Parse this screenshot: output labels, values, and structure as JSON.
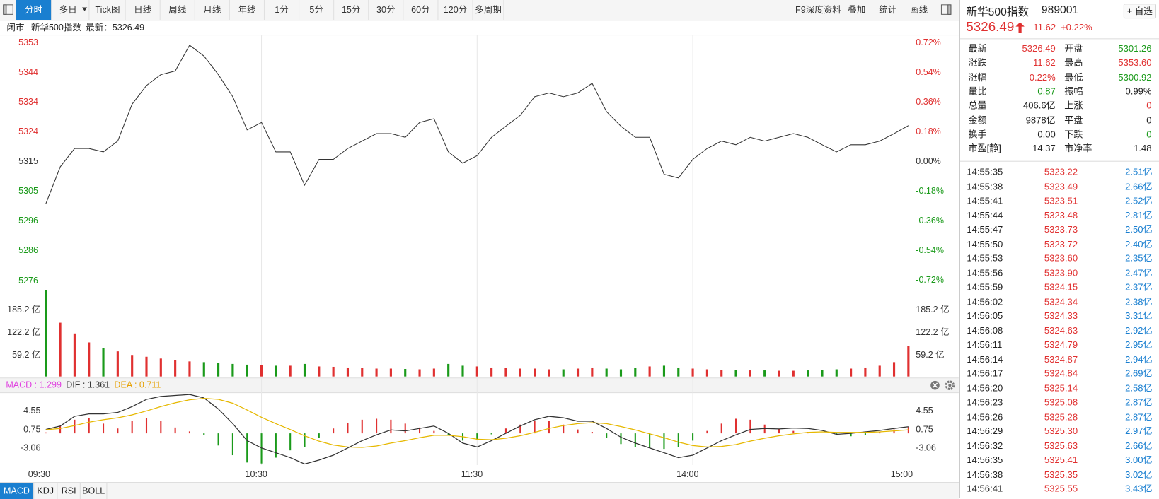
{
  "toolbar": {
    "tabs": [
      "分时",
      "多日",
      "Tick图",
      "日线",
      "周线",
      "月线",
      "年线",
      "1分",
      "5分",
      "15分",
      "30分",
      "60分",
      "120分",
      "多周期"
    ],
    "tools": [
      "F9深度资料",
      "叠加",
      "统计",
      "画线"
    ]
  },
  "status": {
    "state": "闭市",
    "name": "新华500指数",
    "latest": "最新：5326.49"
  },
  "quote": {
    "name": "新华500指数",
    "code": "989001",
    "watch": "+ 自选",
    "price": "5326.49",
    "change": "11.62",
    "change_pct": "+0.22%",
    "color": "#e03030"
  },
  "stats": [
    [
      {
        "label": "最新",
        "value": "5326.49",
        "color": "#e03030"
      },
      {
        "label": "开盘",
        "value": "5301.26",
        "color": "#1a9a1a"
      }
    ],
    [
      {
        "label": "涨跌",
        "value": "11.62",
        "color": "#e03030"
      },
      {
        "label": "最高",
        "value": "5353.60",
        "color": "#e03030"
      }
    ],
    [
      {
        "label": "涨幅",
        "value": "0.22%",
        "color": "#e03030"
      },
      {
        "label": "最低",
        "value": "5300.92",
        "color": "#1a9a1a"
      }
    ],
    [
      {
        "label": "量比",
        "value": "0.87",
        "color": "#1a9a1a"
      },
      {
        "label": "振幅",
        "value": "0.99%",
        "color": "#222222"
      }
    ],
    [
      {
        "label": "总量",
        "value": "406.6亿",
        "color": "#222222"
      },
      {
        "label": "上涨",
        "value": "0",
        "color": "#e03030"
      }
    ],
    [
      {
        "label": "金额",
        "value": "9878亿",
        "color": "#222222"
      },
      {
        "label": "平盘",
        "value": "0",
        "color": "#222222"
      }
    ],
    [
      {
        "label": "换手",
        "value": "0.00",
        "color": "#222222"
      },
      {
        "label": "下跌",
        "value": "0",
        "color": "#1a9a1a"
      }
    ],
    [
      {
        "label": "市盈[静]",
        "value": "14.37",
        "color": "#222222"
      },
      {
        "label": "市净率",
        "value": "1.48",
        "color": "#222222"
      }
    ]
  ],
  "trades": {
    "price_color": "#e03030",
    "amount_color": "#1a7fd0",
    "rows": [
      [
        "14:55:35",
        "5323.22",
        "2.51亿"
      ],
      [
        "14:55:38",
        "5323.49",
        "2.66亿"
      ],
      [
        "14:55:41",
        "5323.51",
        "2.52亿"
      ],
      [
        "14:55:44",
        "5323.48",
        "2.81亿"
      ],
      [
        "14:55:47",
        "5323.73",
        "2.50亿"
      ],
      [
        "14:55:50",
        "5323.72",
        "2.40亿"
      ],
      [
        "14:55:53",
        "5323.60",
        "2.35亿"
      ],
      [
        "14:55:56",
        "5323.90",
        "2.47亿"
      ],
      [
        "14:55:59",
        "5324.15",
        "2.37亿"
      ],
      [
        "14:56:02",
        "5324.34",
        "2.38亿"
      ],
      [
        "14:56:05",
        "5324.33",
        "3.31亿"
      ],
      [
        "14:56:08",
        "5324.63",
        "2.92亿"
      ],
      [
        "14:56:11",
        "5324.79",
        "2.95亿"
      ],
      [
        "14:56:14",
        "5324.87",
        "2.94亿"
      ],
      [
        "14:56:17",
        "5324.84",
        "2.69亿"
      ],
      [
        "14:56:20",
        "5325.14",
        "2.58亿"
      ],
      [
        "14:56:23",
        "5325.08",
        "2.87亿"
      ],
      [
        "14:56:26",
        "5325.28",
        "2.87亿"
      ],
      [
        "14:56:29",
        "5325.30",
        "2.97亿"
      ],
      [
        "14:56:32",
        "5325.63",
        "2.66亿"
      ],
      [
        "14:56:35",
        "5325.41",
        "3.00亿"
      ],
      [
        "14:56:38",
        "5325.35",
        "3.02亿"
      ],
      [
        "14:56:41",
        "5325.55",
        "3.43亿"
      ]
    ]
  },
  "indicator_tabs": [
    "MACD",
    "KDJ",
    "RSI",
    "BOLL"
  ],
  "chart_data": [
    {
      "type": "line",
      "color": "#333333",
      "positive_color": "#e03030",
      "negative_color": "#1a9a1a",
      "neutral_color": "#333333",
      "ylim": [
        5271.82,
        5355.53
      ],
      "yticks": [
        {
          "value": 5353.14,
          "label": "5353"
        },
        {
          "value": 5343.57,
          "label": "5344"
        },
        {
          "value": 5334.0,
          "label": "5334"
        },
        {
          "value": 5324.44,
          "label": "5324"
        },
        {
          "value": 5314.87,
          "label": "5315"
        },
        {
          "value": 5305.3,
          "label": "5305"
        },
        {
          "value": 5295.74,
          "label": "5296"
        },
        {
          "value": 5286.17,
          "label": "5286"
        },
        {
          "value": 5276.4,
          "label": "5276"
        }
      ],
      "y2lim": [
        -0.81,
        0.765
      ],
      "y2ticks": [
        {
          "value": 0.72,
          "label": "0.72%"
        },
        {
          "value": 0.54,
          "label": "0.54%"
        },
        {
          "value": 0.36,
          "label": "0.36%"
        },
        {
          "value": 0.18,
          "label": "0.18%"
        },
        {
          "value": 0,
          "label": "0.00%"
        },
        {
          "value": -0.18,
          "label": "-0.18%"
        },
        {
          "value": -0.36,
          "label": "-0.36%"
        },
        {
          "value": -0.54,
          "label": "-0.54%"
        },
        {
          "value": -0.72,
          "label": "-0.72%"
        }
      ],
      "values": [
        5301.3,
        5313.2,
        5319.1,
        5319.1,
        5318.0,
        5321.5,
        5333.4,
        5339.4,
        5342.9,
        5344.1,
        5352.4,
        5348.9,
        5342.9,
        5335.8,
        5325.1,
        5327.5,
        5318.0,
        5318.0,
        5307.3,
        5315.6,
        5315.6,
        5319.1,
        5321.5,
        5323.9,
        5323.9,
        5322.7,
        5327.5,
        5328.7,
        5318.0,
        5314.4,
        5316.8,
        5322.7,
        5326.3,
        5329.8,
        5335.8,
        5337.0,
        5335.8,
        5337.0,
        5340.1,
        5331.0,
        5326.3,
        5322.7,
        5322.7,
        5310.8,
        5309.6,
        5315.6,
        5319.1,
        5321.5,
        5320.3,
        5322.7,
        5321.5,
        5322.7,
        5323.9,
        5322.7,
        5320.3,
        5318.0,
        5320.3,
        5320.3,
        5321.5,
        5323.9,
        5326.5
      ]
    },
    {
      "type": "bar",
      "up_color": "#e03030",
      "down_color": "#1a9a1a",
      "label_color": "#333333",
      "ylim": [
        0,
        245
      ],
      "yticks": [
        {
          "value": 185.2,
          "label": "185.2 亿"
        },
        {
          "value": 122.2,
          "label": "122.2 亿"
        },
        {
          "value": 59.2,
          "label": "59.2 亿"
        }
      ],
      "values": [
        240,
        150,
        120,
        95,
        80,
        70,
        60,
        55,
        50,
        45,
        42,
        40,
        38,
        35,
        33,
        32,
        30,
        30,
        35,
        28,
        27,
        25,
        24,
        22,
        22,
        21,
        20,
        22,
        35,
        30,
        28,
        25,
        24,
        22,
        22,
        20,
        20,
        22,
        25,
        22,
        20,
        24,
        28,
        30,
        25,
        22,
        20,
        18,
        18,
        17,
        17,
        16,
        16,
        17,
        18,
        20,
        22,
        25,
        30,
        40,
        85
      ]
    },
    {
      "type": "macd",
      "up_color": "#e03030",
      "down_color": "#1a9a1a",
      "label_color": "#333333",
      "header": [
        {
          "text": "MACD : 1.299",
          "color": "#e040e0"
        },
        {
          "text": "DIF : 1.361",
          "color": "#333333"
        },
        {
          "text": "DEA : 0.711",
          "color": "#e6a000"
        }
      ],
      "ylim": [
        -6.53,
        8.36
      ],
      "yticks": [
        4.55,
        0.75,
        -3.06
      ],
      "xticks": [
        "09:30",
        "10:30",
        "11:30",
        "14:00",
        "15:00"
      ],
      "series": [
        {
          "kind": "bar",
          "values": [
            0.2,
            1.5,
            2.8,
            3.2,
            2.0,
            1.0,
            2.5,
            3.2,
            2.6,
            1.2,
            0.4,
            -0.3,
            -2.5,
            -4.5,
            -6.0,
            -6.2,
            -5.0,
            -3.5,
            -2.8,
            -1.0,
            1.0,
            2.2,
            2.8,
            3.0,
            2.8,
            2.0,
            1.2,
            0.5,
            -0.3,
            -1.5,
            -1.3,
            -0.2,
            1.0,
            1.8,
            2.5,
            2.6,
            1.8,
            0.8,
            0.3,
            -1.0,
            -2.2,
            -2.8,
            -3.0,
            -3.2,
            -2.8,
            -1.5,
            0.5,
            2.0,
            3.0,
            2.8,
            1.8,
            0.9,
            0.5,
            0.3,
            0.0,
            -0.4,
            -0.6,
            -0.3,
            0.3,
            0.8,
            1.299
          ]
        },
        {
          "kind": "line",
          "color": "#333333",
          "values": [
            0.8,
            1.5,
            3.5,
            4.0,
            4.0,
            4.3,
            5.5,
            7.0,
            7.6,
            7.8,
            8.0,
            7.3,
            5.0,
            2.0,
            -1.5,
            -3.0,
            -4.0,
            -5.0,
            -6.3,
            -5.5,
            -4.5,
            -3.0,
            -1.5,
            -0.3,
            0.7,
            0.5,
            1.0,
            1.5,
            0.0,
            -2.0,
            -2.8,
            -1.5,
            0.0,
            1.5,
            2.8,
            3.5,
            3.2,
            2.5,
            2.5,
            1.0,
            -0.8,
            -2.0,
            -3.0,
            -4.0,
            -5.0,
            -4.5,
            -3.0,
            -1.5,
            -0.3,
            0.8,
            1.0,
            0.9,
            1.1,
            1.0,
            0.6,
            -0.2,
            0.0,
            0.3,
            0.6,
            1.0,
            1.361
          ]
        },
        {
          "kind": "line",
          "color": "#e6b800",
          "values": [
            0.75,
            1.0,
            1.6,
            2.3,
            2.8,
            3.2,
            3.8,
            4.6,
            5.5,
            6.3,
            6.9,
            7.2,
            7.0,
            6.2,
            4.8,
            3.3,
            2.0,
            0.8,
            -0.5,
            -1.6,
            -2.4,
            -2.8,
            -2.9,
            -2.6,
            -2.0,
            -1.5,
            -0.9,
            -0.4,
            -0.4,
            -0.7,
            -1.2,
            -1.3,
            -1.0,
            -0.5,
            0.2,
            1.0,
            1.6,
            2.0,
            2.2,
            2.0,
            1.4,
            0.7,
            -0.1,
            -0.9,
            -1.8,
            -2.5,
            -2.8,
            -2.7,
            -2.3,
            -1.6,
            -1.0,
            -0.5,
            -0.1,
            0.2,
            0.3,
            0.2,
            0.2,
            0.2,
            0.3,
            0.5,
            0.711
          ]
        }
      ]
    }
  ]
}
